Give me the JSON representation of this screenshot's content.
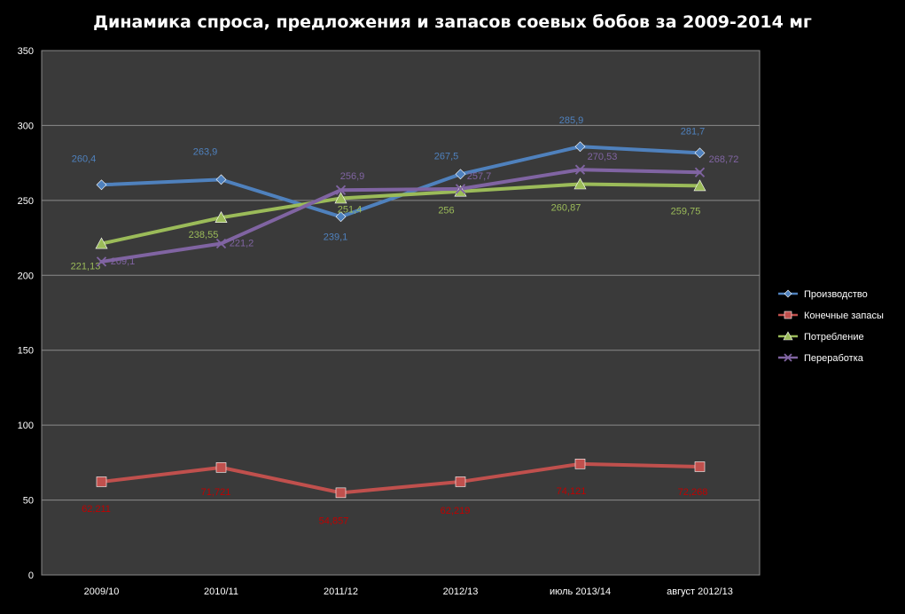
{
  "chart_data": {
    "type": "line",
    "title": "Динамика спроса, предложения и запасов соевых бобов за 2009-2014 мг",
    "categories": [
      "2009/10",
      "2010/11",
      "2011/12",
      "2012/13",
      "июль 2013/14",
      "август 2012/13"
    ],
    "ylim": [
      0,
      350
    ],
    "yticks": [
      0,
      50,
      100,
      150,
      200,
      250,
      300,
      350
    ],
    "grid": true,
    "legend_position": "right",
    "series": [
      {
        "name": "Производство",
        "marker": "diamond",
        "color": "#4f81bd",
        "label_color": "#4f81bd",
        "values": [
          260.4,
          263.9,
          239.1,
          267.5,
          285.9,
          281.7
        ],
        "labels": [
          "260,4",
          "263,9",
          "239,1",
          "267,5",
          "285,9",
          "281,7"
        ]
      },
      {
        "name": "Конечные запасы",
        "marker": "square",
        "color": "#c0504d",
        "label_color": "#c00000",
        "values": [
          62.211,
          71.721,
          54.857,
          62.219,
          74.121,
          72.268
        ],
        "labels": [
          "62,211",
          "71,721",
          "54,857",
          "62,219",
          "74,121",
          "72,268"
        ]
      },
      {
        "name": "Потребление",
        "marker": "triangle",
        "color": "#9bbb59",
        "label_color": "#9bbb59",
        "values": [
          221.13,
          238.55,
          251.4,
          256,
          260.87,
          259.75
        ],
        "labels": [
          "221,13",
          "238,55",
          "251,4",
          "256",
          "260,87",
          "259,75"
        ]
      },
      {
        "name": "Переработка",
        "marker": "x",
        "color": "#8064a2",
        "label_color": "#8064a2",
        "values": [
          209.1,
          221.2,
          256.9,
          257.7,
          270.53,
          268.72
        ],
        "labels": [
          "209,1",
          "221,2",
          "256,9",
          "257,7",
          "270,53",
          "268,72"
        ]
      }
    ]
  }
}
